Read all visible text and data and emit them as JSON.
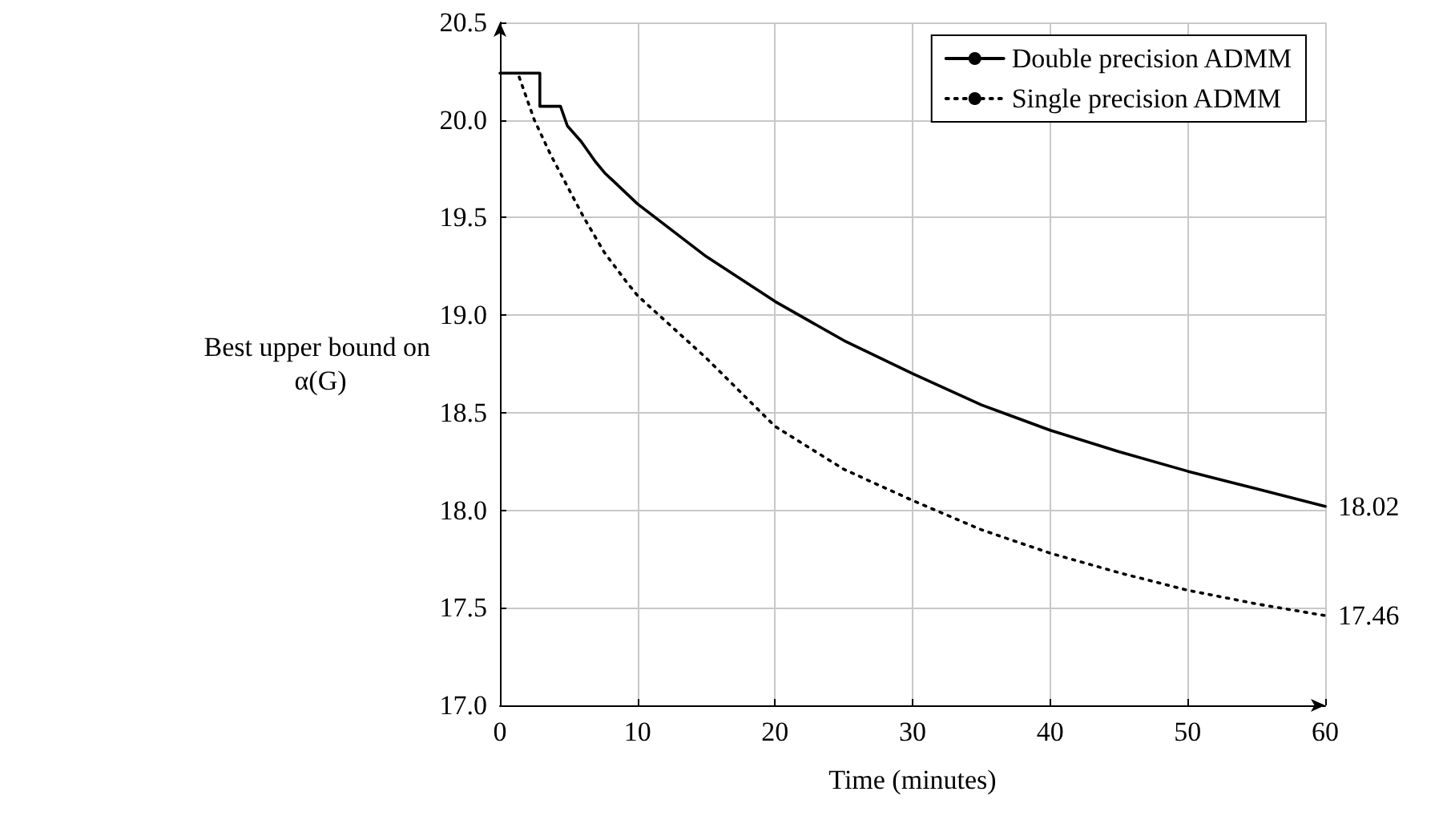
{
  "chart_data": {
    "type": "line",
    "xlabel": "Time (minutes)",
    "ylabel": "Best upper bound on α(G)",
    "xlim": [
      0,
      60
    ],
    "xticks": [
      0,
      10,
      20,
      30,
      40,
      50,
      60
    ],
    "ylim": [
      17,
      20.5
    ],
    "yticks": [
      {
        "value": 17,
        "label": "17.0"
      },
      17.5,
      {
        "value": 18,
        "label": "18.0"
      },
      18.5,
      {
        "value": 19,
        "label": "19.0"
      },
      19.5,
      {
        "value": 20,
        "label": "20.0"
      },
      20.5
    ],
    "grid": true,
    "legend": "top right",
    "marker": "none",
    "series": [
      {
        "name": "Double precision ADMM",
        "color": "#000000",
        "line_style": "solid",
        "x": [
          0,
          2.9,
          2.9,
          4.4,
          4.9,
          5.9,
          6.9,
          7.6,
          10,
          15,
          20,
          25,
          30,
          35,
          40,
          45,
          50,
          55,
          60
        ],
        "values": [
          20.24,
          20.24,
          20.07,
          20.07,
          19.97,
          19.89,
          19.79,
          19.73,
          19.57,
          19.3,
          19.07,
          18.87,
          18.7,
          18.54,
          18.41,
          18.3,
          18.2,
          18.11,
          18.02
        ]
      },
      {
        "name": "Single precision ADMM",
        "color": "#000000",
        "line_style": "dotted",
        "x": [
          1.4,
          2.5,
          3.7,
          4.9,
          6.1,
          7.6,
          9.2,
          10,
          15,
          20,
          25,
          30,
          35,
          40,
          45,
          50,
          55,
          60
        ],
        "values": [
          20.22,
          20.0,
          19.82,
          19.66,
          19.5,
          19.32,
          19.17,
          19.1,
          18.78,
          18.43,
          18.21,
          18.05,
          17.9,
          17.78,
          17.68,
          17.59,
          17.52,
          17.46
        ]
      }
    ],
    "annotations": [
      {
        "text": "18.02",
        "x": 60,
        "y": 18.02
      },
      {
        "text": "17.46",
        "x": 60,
        "y": 17.46
      }
    ]
  }
}
